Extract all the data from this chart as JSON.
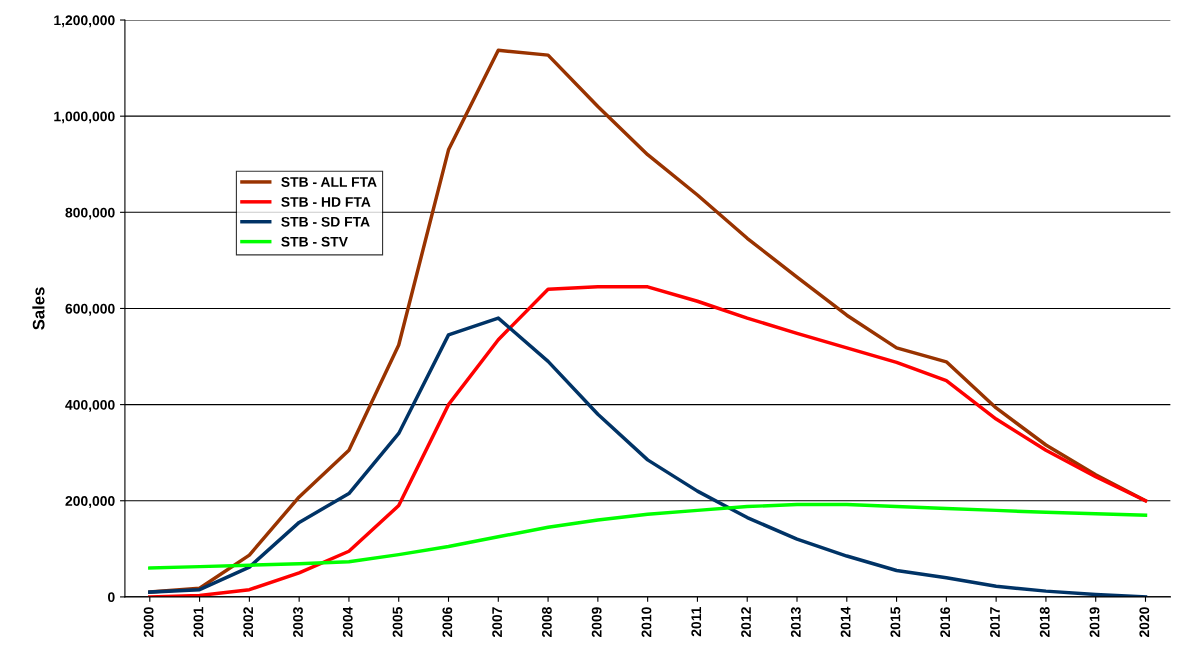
{
  "chart_data": {
    "type": "line",
    "ylabel": "Sales",
    "categories": [
      "2000",
      "2001",
      "2002",
      "2003",
      "2004",
      "2005",
      "2006",
      "2007",
      "2008",
      "2009",
      "2010",
      "2011",
      "2012",
      "2013",
      "2014",
      "2015",
      "2016",
      "2017",
      "2018",
      "2019",
      "2020"
    ],
    "series": [
      {
        "name": "STB - ALL FTA",
        "color": "#993300",
        "values": [
          10000,
          18000,
          87000,
          208000,
          305000,
          524000,
          930000,
          1137000,
          1127000,
          1020000,
          920000,
          836000,
          746000,
          665000,
          586000,
          518000,
          489000,
          393000,
          316000,
          254000,
          200000
        ]
      },
      {
        "name": "STB - HD FTA",
        "color": "#ff0000",
        "values": [
          0,
          3000,
          15000,
          50000,
          95000,
          190000,
          400000,
          535000,
          640000,
          645000,
          645000,
          615000,
          580000,
          548000,
          518000,
          488000,
          450000,
          370000,
          305000,
          250000,
          200000
        ]
      },
      {
        "name": "STB - SD FTA",
        "color": "#003366",
        "values": [
          10000,
          15000,
          62000,
          155000,
          215000,
          340000,
          545000,
          580000,
          490000,
          380000,
          285000,
          220000,
          165000,
          120000,
          85000,
          55000,
          40000,
          22000,
          12000,
          5000,
          0
        ]
      },
      {
        "name": "STB - STV",
        "color": "#00ff00",
        "values": [
          60000,
          63000,
          66000,
          69000,
          73000,
          88000,
          105000,
          125000,
          145000,
          160000,
          172000,
          180000,
          188000,
          192000,
          192000,
          188000,
          184000,
          180000,
          176000,
          173000,
          170000
        ]
      }
    ],
    "ylim": [
      0,
      1200000
    ],
    "yticks": [
      {
        "value": 0,
        "label": "0"
      },
      {
        "value": 200000,
        "label": "200,000"
      },
      {
        "value": 400000,
        "label": "400,000"
      },
      {
        "value": 600000,
        "label": "600,000"
      },
      {
        "value": 800000,
        "label": "800,000"
      },
      {
        "value": 1000000,
        "label": "1,000,000"
      },
      {
        "value": 1200000,
        "label": "1,200,000"
      }
    ],
    "grid": "y",
    "legend": "top left",
    "line_style": "solid"
  }
}
